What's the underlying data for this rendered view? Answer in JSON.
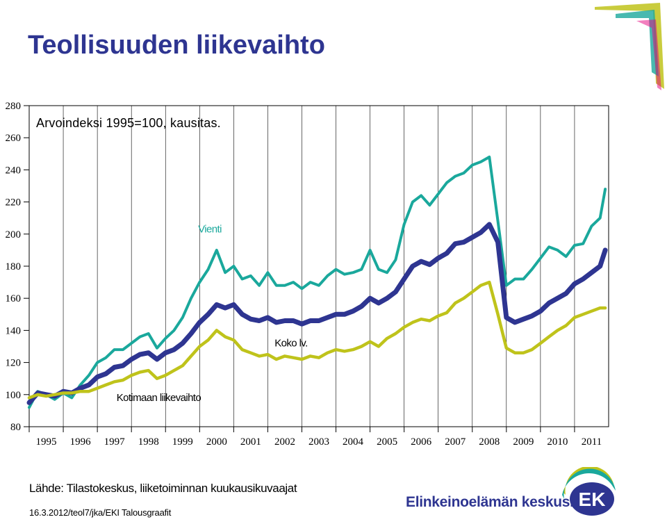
{
  "page": {
    "title": "Teollisuuden liikevaihto",
    "source": "Lähde: Tilastokeskus, liiketoiminnan kuukausikuvaajat",
    "footnote": "16.3.2012/teol7/jka/EKI Talousgraafit",
    "organization": "Elinkeinoelämän keskusliitto",
    "logo_text": "EK",
    "colors": {
      "title": "#2e3591",
      "vienti": "#1aa89c",
      "koko": "#2e3591",
      "kotimaan": "#bfc31b"
    }
  },
  "chart_data": {
    "type": "line",
    "subtitle": "Arvoindeksi 1995=100, kausitas.",
    "xlabel": "",
    "ylabel": "",
    "ylim": [
      80,
      280
    ],
    "yticks": [
      80,
      100,
      120,
      140,
      160,
      180,
      200,
      220,
      240,
      260,
      280
    ],
    "xlim": [
      1995,
      2012
    ],
    "xticks": [
      "1995",
      "1996",
      "1997",
      "1998",
      "1999",
      "2000",
      "2001",
      "2002",
      "2003",
      "2004",
      "2005",
      "2006",
      "2007",
      "2008",
      "2009",
      "2010",
      "2011"
    ],
    "grid": "vertical-years",
    "series": [
      {
        "name": "Vienti",
        "color": "#1aa89c",
        "x": [
          1995.0,
          1995.25,
          1995.5,
          1995.75,
          1996.0,
          1996.25,
          1996.5,
          1996.75,
          1997.0,
          1997.25,
          1997.5,
          1997.75,
          1998.0,
          1998.25,
          1998.5,
          1998.75,
          1999.0,
          1999.25,
          1999.5,
          1999.75,
          2000.0,
          2000.25,
          2000.5,
          2000.75,
          2001.0,
          2001.25,
          2001.5,
          2001.75,
          2002.0,
          2002.25,
          2002.5,
          2002.75,
          2003.0,
          2003.25,
          2003.5,
          2003.75,
          2004.0,
          2004.25,
          2004.5,
          2004.75,
          2005.0,
          2005.25,
          2005.5,
          2005.75,
          2006.0,
          2006.25,
          2006.5,
          2006.75,
          2007.0,
          2007.25,
          2007.5,
          2007.75,
          2008.0,
          2008.25,
          2008.5,
          2008.75,
          2009.0,
          2009.25,
          2009.5,
          2009.75,
          2010.0,
          2010.25,
          2010.5,
          2010.75,
          2011.0,
          2011.25,
          2011.5,
          2011.75,
          2011.9
        ],
        "values": [
          92,
          102,
          100,
          97,
          101,
          98,
          106,
          112,
          120,
          123,
          128,
          128,
          132,
          136,
          138,
          129,
          135,
          140,
          148,
          160,
          170,
          178,
          190,
          176,
          180,
          172,
          174,
          168,
          176,
          168,
          168,
          170,
          166,
          170,
          168,
          174,
          178,
          175,
          176,
          178,
          190,
          178,
          176,
          184,
          206,
          220,
          224,
          218,
          225,
          232,
          236,
          238,
          243,
          245,
          248,
          208,
          168,
          172,
          172,
          178,
          185,
          192,
          190,
          186,
          193,
          194,
          205,
          210,
          228
        ]
      },
      {
        "name": "Koko lv.",
        "color": "#2e3591",
        "x": [
          1995.0,
          1995.25,
          1995.5,
          1995.75,
          1996.0,
          1996.25,
          1996.5,
          1996.75,
          1997.0,
          1997.25,
          1997.5,
          1997.75,
          1998.0,
          1998.25,
          1998.5,
          1998.75,
          1999.0,
          1999.25,
          1999.5,
          1999.75,
          2000.0,
          2000.25,
          2000.5,
          2000.75,
          2001.0,
          2001.25,
          2001.5,
          2001.75,
          2002.0,
          2002.25,
          2002.5,
          2002.75,
          2003.0,
          2003.25,
          2003.5,
          2003.75,
          2004.0,
          2004.25,
          2004.5,
          2004.75,
          2005.0,
          2005.25,
          2005.5,
          2005.75,
          2006.0,
          2006.25,
          2006.5,
          2006.75,
          2007.0,
          2007.25,
          2007.5,
          2007.75,
          2008.0,
          2008.25,
          2008.5,
          2008.75,
          2009.0,
          2009.25,
          2009.5,
          2009.75,
          2010.0,
          2010.25,
          2010.5,
          2010.75,
          2011.0,
          2011.25,
          2011.5,
          2011.75,
          2011.9
        ],
        "values": [
          95,
          101,
          100,
          99,
          102,
          101,
          104,
          106,
          111,
          113,
          117,
          118,
          122,
          125,
          126,
          122,
          126,
          128,
          132,
          138,
          145,
          150,
          156,
          154,
          156,
          150,
          147,
          146,
          148,
          145,
          146,
          146,
          144,
          146,
          146,
          148,
          150,
          150,
          152,
          155,
          160,
          157,
          160,
          164,
          172,
          180,
          183,
          181,
          185,
          188,
          194,
          195,
          198,
          201,
          206,
          195,
          148,
          145,
          147,
          149,
          152,
          157,
          160,
          163,
          169,
          172,
          176,
          180,
          190
        ]
      },
      {
        "name": "Kotimaan liikevaihto",
        "color": "#bfc31b",
        "x": [
          1995.0,
          1995.25,
          1995.5,
          1995.75,
          1996.0,
          1996.25,
          1996.5,
          1996.75,
          1997.0,
          1997.25,
          1997.5,
          1997.75,
          1998.0,
          1998.25,
          1998.5,
          1998.75,
          1999.0,
          1999.25,
          1999.5,
          1999.75,
          2000.0,
          2000.25,
          2000.5,
          2000.75,
          2001.0,
          2001.25,
          2001.5,
          2001.75,
          2002.0,
          2002.25,
          2002.5,
          2002.75,
          2003.0,
          2003.25,
          2003.5,
          2003.75,
          2004.0,
          2004.25,
          2004.5,
          2004.75,
          2005.0,
          2005.25,
          2005.5,
          2005.75,
          2006.0,
          2006.25,
          2006.5,
          2006.75,
          2007.0,
          2007.25,
          2007.5,
          2007.75,
          2008.0,
          2008.25,
          2008.5,
          2008.75,
          2009.0,
          2009.25,
          2009.5,
          2009.75,
          2010.0,
          2010.25,
          2010.5,
          2010.75,
          2011.0,
          2011.25,
          2011.5,
          2011.75,
          2011.9
        ],
        "values": [
          98,
          100,
          99,
          100,
          101,
          101,
          102,
          102,
          104,
          106,
          108,
          109,
          112,
          114,
          115,
          110,
          112,
          115,
          118,
          124,
          130,
          134,
          140,
          136,
          134,
          128,
          126,
          124,
          125,
          122,
          124,
          123,
          122,
          124,
          123,
          126,
          128,
          127,
          128,
          130,
          133,
          130,
          135,
          138,
          142,
          145,
          147,
          146,
          149,
          151,
          157,
          160,
          164,
          168,
          170,
          150,
          129,
          126,
          126,
          128,
          132,
          136,
          140,
          143,
          148,
          150,
          152,
          154,
          154
        ]
      }
    ],
    "annotations": [
      {
        "text": "Vienti",
        "series": "Vienti",
        "x": 2000.3,
        "y": 201,
        "anchor": "middle"
      },
      {
        "text": "Koko lv.",
        "series": "Koko lv.",
        "x": 2002.2,
        "y": 130,
        "anchor": "start"
      },
      {
        "text": "Kotimaan liikevaihto",
        "series": "Kotimaan liikevaihto",
        "x": 1998.8,
        "y": 96,
        "anchor": "middle"
      }
    ]
  }
}
